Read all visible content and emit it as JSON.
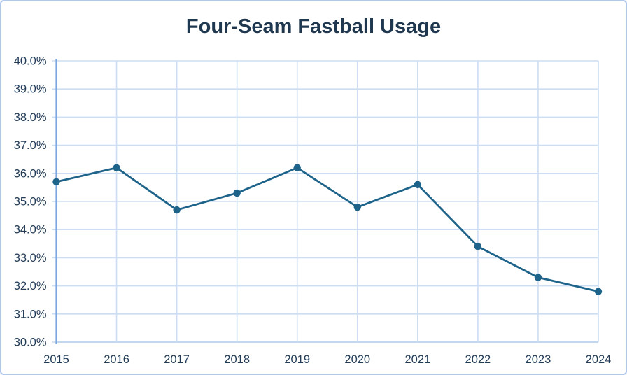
{
  "chart_data": {
    "type": "line",
    "title": "Four-Seam Fastball Usage",
    "xlabel": "",
    "ylabel": "",
    "unit": "%",
    "categories": [
      "2015",
      "2016",
      "2017",
      "2018",
      "2019",
      "2020",
      "2021",
      "2022",
      "2023",
      "2024"
    ],
    "series": [
      {
        "name": "Four-Seam Fastball Usage",
        "values": [
          35.7,
          36.2,
          34.7,
          35.3,
          36.2,
          34.8,
          35.6,
          33.4,
          32.3,
          31.8
        ]
      }
    ],
    "ylim": [
      30,
      40
    ],
    "ytick_values": [
      40,
      39,
      38,
      37,
      36,
      35,
      34,
      33,
      32,
      31,
      30
    ],
    "ytick_labels": [
      "40.0%",
      "39.0%",
      "38.0%",
      "37.0%",
      "36.0%",
      "35.0%",
      "34.0%",
      "33.0%",
      "32.0%",
      "31.0%",
      "30.0%"
    ],
    "grid": true,
    "legend": "none",
    "markers": true,
    "colors": {
      "line": "#1e6389",
      "marker": "#1e6389",
      "gridline": "#cdddf2",
      "bottom_axis": "#c3d7ee",
      "y_axis": "#7ca6dc",
      "title_text": "#1f384f",
      "tick_text": "#223c58",
      "frame_border": "#b4c7e7"
    }
  }
}
